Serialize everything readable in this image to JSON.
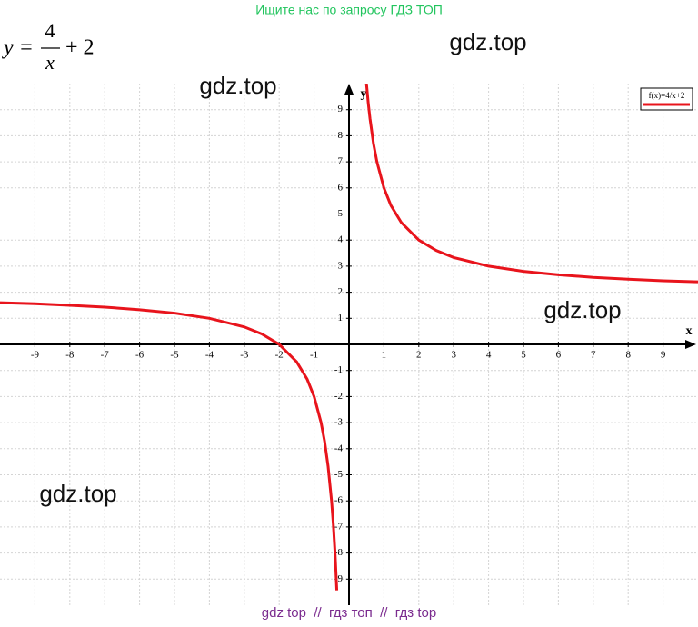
{
  "header": "Ищите нас по запросу ГДЗ ТОП",
  "formula": {
    "lhs": "y =",
    "numerator": "4",
    "denominator": "x",
    "rest": "+ 2"
  },
  "watermarks": [
    "gdz.top",
    "gdz.top",
    "gdz.top",
    "gdz.top"
  ],
  "footer": "gdz top  //  гдз топ  //  гдз top",
  "chart_data": {
    "type": "line",
    "x_label": "x",
    "y_label": "y",
    "xlim": [
      -10,
      10
    ],
    "ylim": [
      -10,
      10
    ],
    "xticks": [
      -9,
      -8,
      -7,
      -6,
      -5,
      -4,
      -3,
      -2,
      -1,
      1,
      2,
      3,
      4,
      5,
      6,
      7,
      8,
      9
    ],
    "yticks": [
      -9,
      -8,
      -7,
      -6,
      -5,
      -4,
      -3,
      -2,
      -1,
      1,
      2,
      3,
      4,
      5,
      6,
      7,
      8,
      9
    ],
    "grid": true,
    "legend": "top-right",
    "series": [
      {
        "name": "f(x)=4/x+2",
        "color": "#e8141c",
        "x": [
          -10,
          -9,
          -8,
          -7,
          -6,
          -5,
          -4,
          -3,
          -2.5,
          -2,
          -1.5,
          -1.2,
          -1,
          -0.8,
          -0.7,
          -0.6,
          -0.5,
          -0.45,
          -0.4,
          -0.35,
          null,
          0.5,
          0.55,
          0.6,
          0.7,
          0.8,
          1,
          1.2,
          1.5,
          2,
          2.5,
          3,
          4,
          5,
          6,
          7,
          8,
          9,
          10
        ],
        "values": [
          1.6,
          1.56,
          1.5,
          1.43,
          1.33,
          1.2,
          1,
          0.67,
          0.4,
          0,
          -0.67,
          -1.33,
          -2,
          -3,
          -3.71,
          -4.67,
          -6,
          -6.89,
          -8,
          -9.43,
          null,
          10,
          9.27,
          8.67,
          7.71,
          7,
          6,
          5.33,
          4.67,
          4,
          3.6,
          3.33,
          3,
          2.8,
          2.67,
          2.57,
          2.5,
          2.44,
          2.4
        ]
      }
    ]
  }
}
